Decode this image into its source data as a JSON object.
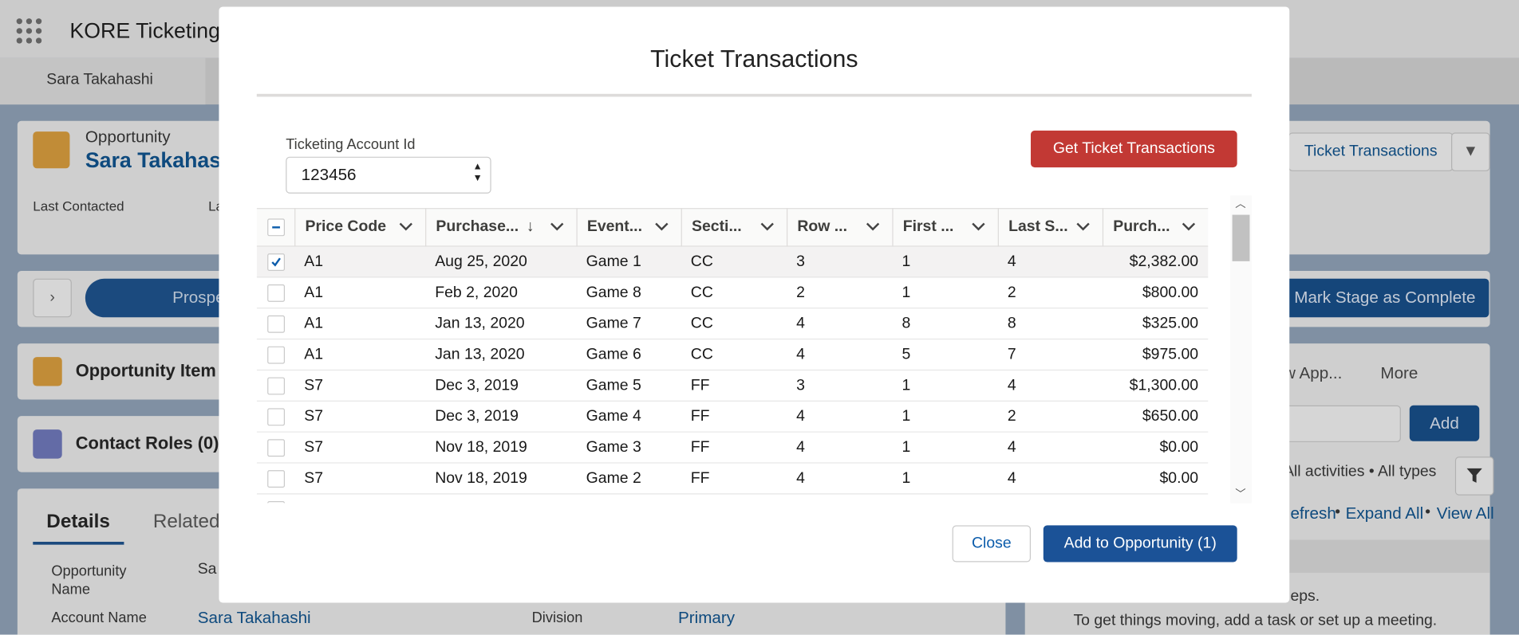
{
  "header": {
    "app_name": "KORE Ticketing",
    "tab": "Sara Takahashi"
  },
  "background": {
    "record_type": "Opportunity",
    "record_name": "Sara Takahas",
    "last_contacted": "Last Contacted",
    "field_cut": "La",
    "path_stage": "Prospe",
    "ticket_button": "Ticket Transactions",
    "mark_stage": "Mark Stage as Complete",
    "items_card": "Opportunity Item",
    "contact_roles": "Contact Roles (0)",
    "activity_tab": "w App...",
    "more_tab": "More",
    "add_button": "Add",
    "activity_filter": "All activities • All types",
    "refresh": "efresh",
    "expand_all": "Expand All",
    "view_all": "View All",
    "bullet": "•",
    "details_tab": "Details",
    "related_tab": "Related",
    "opp_name_label": "Opportunity Name",
    "opp_name_value": "Sa",
    "account_label": "Account Name",
    "account_value": "Sara Takahashi",
    "division_label": "Division",
    "division_value": "Primary",
    "empty_1": "eps.",
    "empty_2": "To get things moving, add a task or set up a meeting."
  },
  "modal": {
    "title": "Ticket Transactions",
    "account_id_label": "Ticketing Account Id",
    "account_id_value": "123456",
    "get_button": "Get Ticket Transactions",
    "table": {
      "columns": [
        "Price Code",
        "Purchase...",
        "Event...",
        "Secti...",
        "Row ...",
        "First ...",
        "Last S...",
        "Purch..."
      ],
      "rows": [
        [
          "A1",
          "Aug 25, 2020",
          "Game 1",
          "CC",
          "3",
          "1",
          "4",
          "$2,382.00"
        ],
        [
          "A1",
          "Feb 2, 2020",
          "Game 8",
          "CC",
          "2",
          "1",
          "2",
          "$800.00"
        ],
        [
          "A1",
          "Jan 13, 2020",
          "Game 7",
          "CC",
          "4",
          "8",
          "8",
          "$325.00"
        ],
        [
          "A1",
          "Jan 13, 2020",
          "Game 6",
          "CC",
          "4",
          "5",
          "7",
          "$975.00"
        ],
        [
          "S7",
          "Dec 3, 2019",
          "Game 5",
          "FF",
          "3",
          "1",
          "4",
          "$1,300.00"
        ],
        [
          "S7",
          "Dec 3, 2019",
          "Game 4",
          "FF",
          "4",
          "1",
          "2",
          "$650.00"
        ],
        [
          "S7",
          "Nov 18, 2019",
          "Game 3",
          "FF",
          "4",
          "1",
          "4",
          "$0.00"
        ],
        [
          "S7",
          "Nov 18, 2019",
          "Game 2",
          "FF",
          "4",
          "1",
          "4",
          "$0.00"
        ]
      ],
      "selected": [
        true,
        false,
        false,
        false,
        false,
        false,
        false,
        false
      ]
    },
    "close_button": "Close",
    "add_button": "Add to Opportunity (1)"
  }
}
